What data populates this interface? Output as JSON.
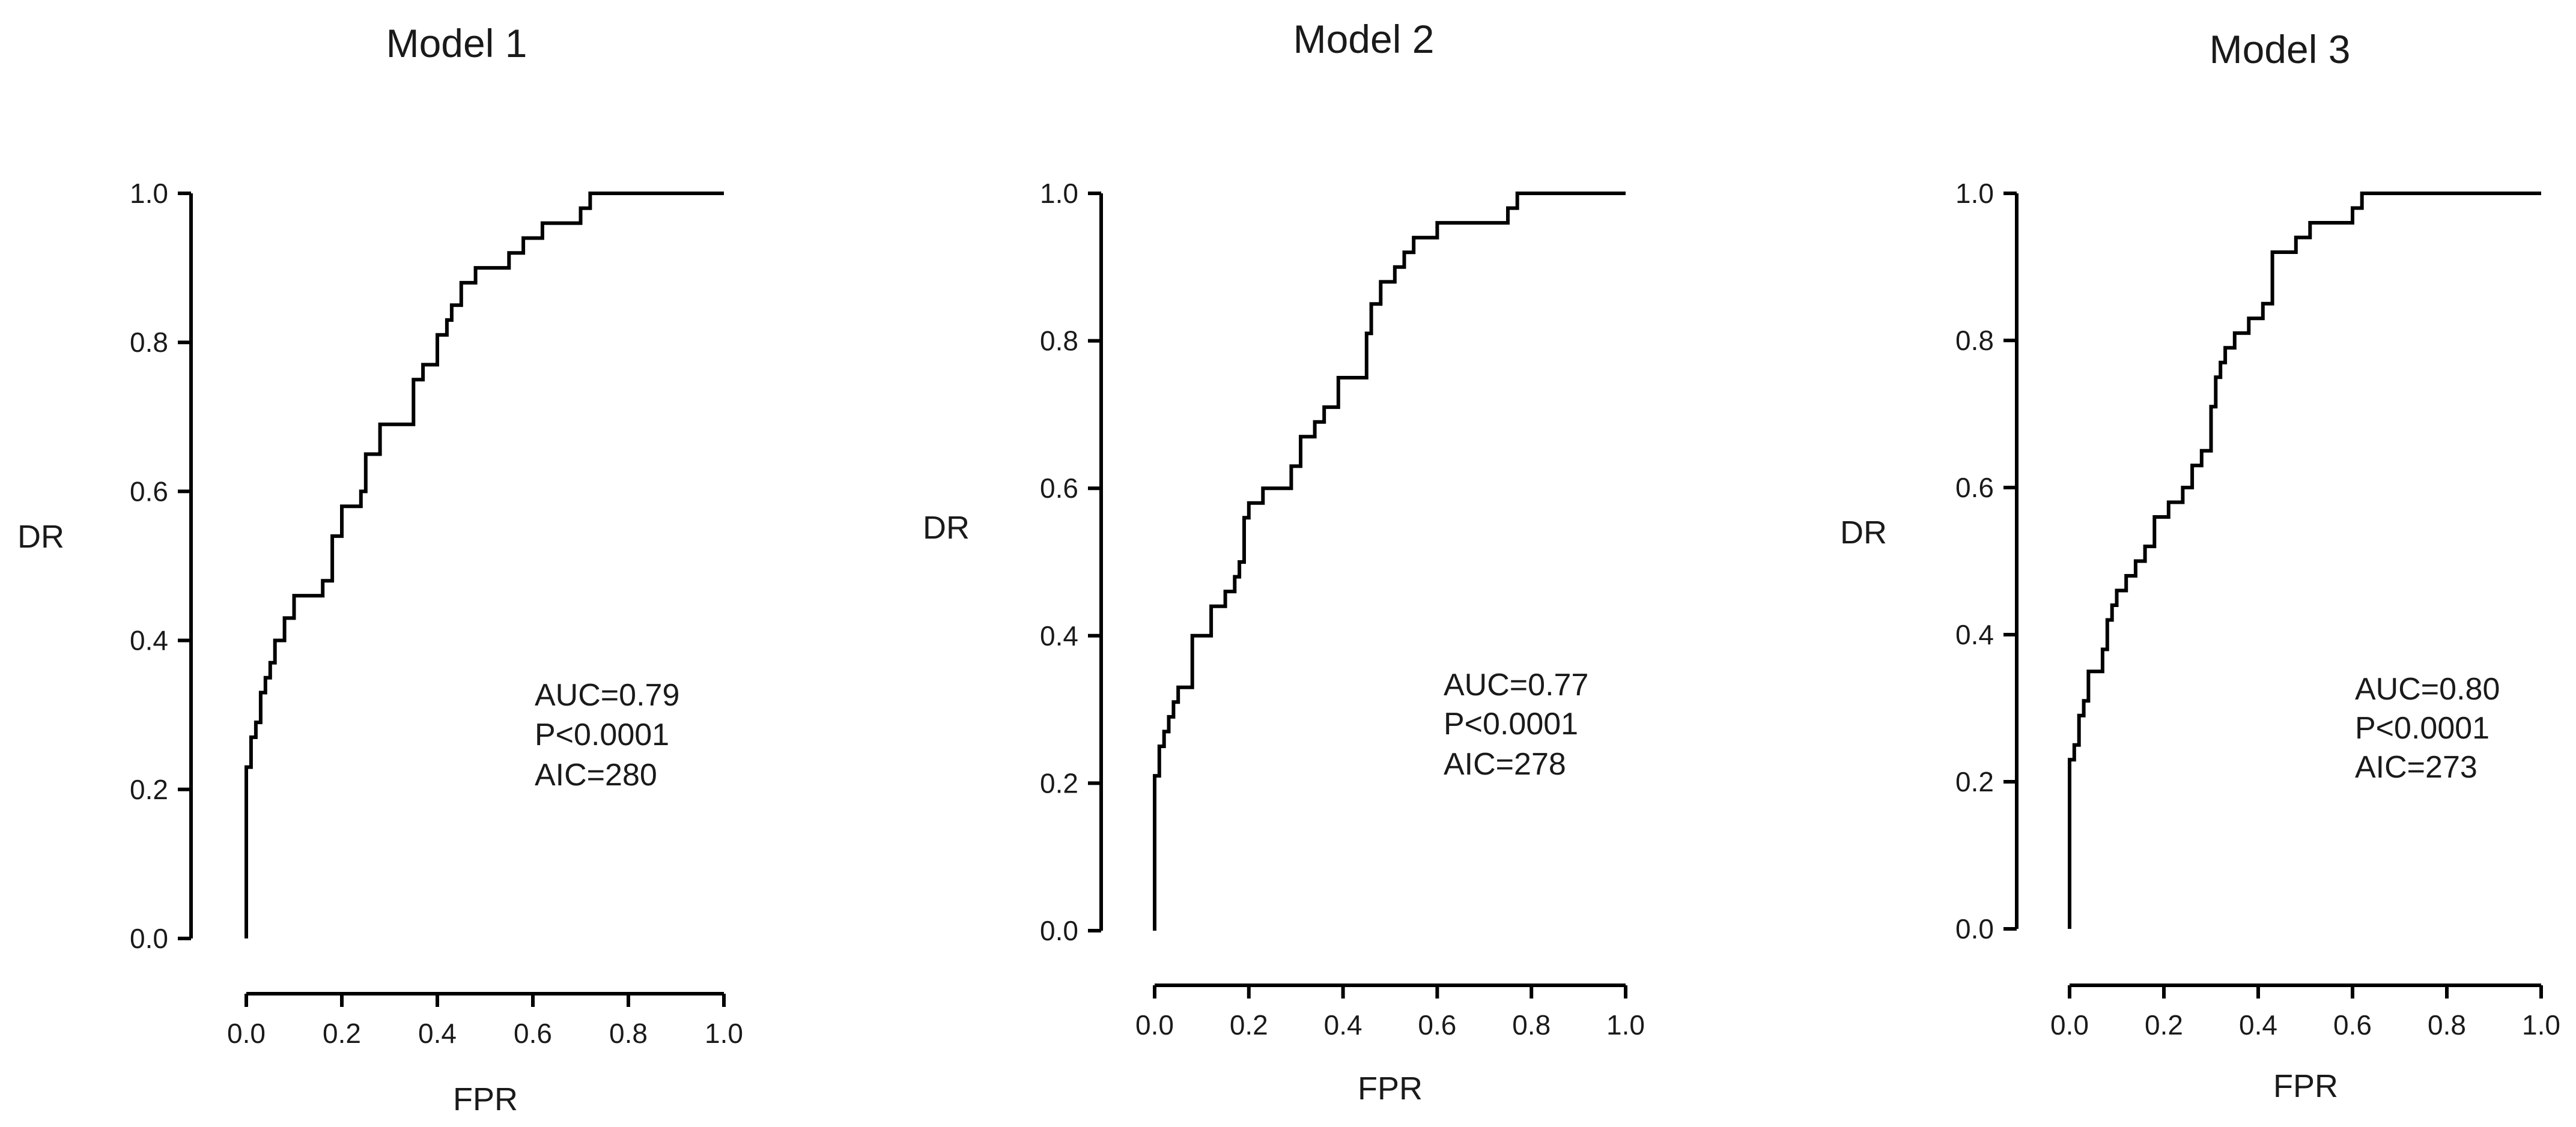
{
  "chart_data": [
    {
      "type": "line",
      "title": "Model 1",
      "xlabel": "FPR",
      "ylabel": "DR",
      "xlim": [
        0,
        1
      ],
      "ylim": [
        0,
        1
      ],
      "x_ticks": [
        "0.0",
        "0.2",
        "0.4",
        "0.6",
        "0.8",
        "1.0"
      ],
      "y_ticks": [
        "0.0",
        "0.2",
        "0.4",
        "0.6",
        "0.8",
        "1.0"
      ],
      "grid": false,
      "annotations": [
        "AUC=0.79",
        "P<0.0001",
        "AIC=280"
      ],
      "series": [
        {
          "x": [
            0,
            0,
            0,
            0.01,
            0.01,
            0.02,
            0.02,
            0.03,
            0.03,
            0.04,
            0.04,
            0.05,
            0.05,
            0.06,
            0.06,
            0.07,
            0.07,
            0.08,
            0.08,
            0.1,
            0.1,
            0.11,
            0.11,
            0.16,
            0.16,
            0.18,
            0.18,
            0.2,
            0.2,
            0.24,
            0.24,
            0.25,
            0.25,
            0.28,
            0.28,
            0.35,
            0.35,
            0.37,
            0.37,
            0.4,
            0.4,
            0.42,
            0.42,
            0.43,
            0.43,
            0.45,
            0.45,
            0.48,
            0.48,
            0.55,
            0.55,
            0.58,
            0.58,
            0.62,
            0.62,
            0.7,
            0.7,
            0.72,
            0.72,
            1.0
          ],
          "y": [
            0,
            0.14,
            0.23,
            0.23,
            0.27,
            0.27,
            0.29,
            0.29,
            0.33,
            0.33,
            0.35,
            0.35,
            0.37,
            0.37,
            0.4,
            0.4,
            0.4,
            0.4,
            0.43,
            0.43,
            0.46,
            0.46,
            0.46,
            0.46,
            0.48,
            0.48,
            0.54,
            0.54,
            0.58,
            0.58,
            0.6,
            0.6,
            0.65,
            0.65,
            0.69,
            0.69,
            0.75,
            0.75,
            0.77,
            0.77,
            0.81,
            0.81,
            0.83,
            0.83,
            0.85,
            0.85,
            0.88,
            0.88,
            0.9,
            0.9,
            0.92,
            0.92,
            0.94,
            0.94,
            0.96,
            0.96,
            0.98,
            0.98,
            1.0,
            1.0
          ]
        }
      ]
    },
    {
      "type": "line",
      "title": "Model 2",
      "xlabel": "FPR",
      "ylabel": "DR",
      "xlim": [
        0,
        1
      ],
      "ylim": [
        0,
        1
      ],
      "x_ticks": [
        "0.0",
        "0.2",
        "0.4",
        "0.6",
        "0.8",
        "1.0"
      ],
      "y_ticks": [
        "0.0",
        "0.2",
        "0.4",
        "0.6",
        "0.8",
        "1.0"
      ],
      "grid": false,
      "annotations": [
        "AUC=0.77",
        "P<0.0001",
        "AIC=278"
      ],
      "series": [
        {
          "x": [
            0,
            0,
            0,
            0.01,
            0.01,
            0.02,
            0.02,
            0.03,
            0.03,
            0.04,
            0.04,
            0.05,
            0.05,
            0.08,
            0.08,
            0.12,
            0.12,
            0.15,
            0.15,
            0.17,
            0.17,
            0.18,
            0.18,
            0.19,
            0.19,
            0.2,
            0.2,
            0.23,
            0.23,
            0.29,
            0.29,
            0.31,
            0.31,
            0.34,
            0.34,
            0.36,
            0.36,
            0.39,
            0.39,
            0.45,
            0.45,
            0.46,
            0.46,
            0.48,
            0.48,
            0.51,
            0.51,
            0.53,
            0.53,
            0.55,
            0.55,
            0.6,
            0.6,
            0.75,
            0.75,
            0.77,
            0.77,
            1.0
          ],
          "y": [
            0,
            0.14,
            0.21,
            0.21,
            0.25,
            0.25,
            0.27,
            0.27,
            0.29,
            0.29,
            0.31,
            0.31,
            0.33,
            0.33,
            0.4,
            0.4,
            0.44,
            0.44,
            0.46,
            0.46,
            0.48,
            0.48,
            0.5,
            0.5,
            0.56,
            0.56,
            0.58,
            0.58,
            0.6,
            0.6,
            0.63,
            0.63,
            0.67,
            0.67,
            0.69,
            0.69,
            0.71,
            0.71,
            0.75,
            0.75,
            0.81,
            0.81,
            0.85,
            0.85,
            0.88,
            0.88,
            0.9,
            0.9,
            0.92,
            0.92,
            0.94,
            0.94,
            0.96,
            0.96,
            0.98,
            0.98,
            1.0,
            1.0
          ]
        }
      ]
    },
    {
      "type": "line",
      "title": "Model 3",
      "xlabel": "FPR",
      "ylabel": "DR",
      "xlim": [
        0,
        1
      ],
      "ylim": [
        0,
        1
      ],
      "x_ticks": [
        "0.0",
        "0.2",
        "0.4",
        "0.6",
        "0.8",
        "1.0"
      ],
      "y_ticks": [
        "0.0",
        "0.2",
        "0.4",
        "0.6",
        "0.8",
        "1.0"
      ],
      "grid": false,
      "annotations": [
        "AUC=0.80",
        "P<0.0001",
        "AIC=273"
      ],
      "series": [
        {
          "x": [
            0,
            0,
            0,
            0.01,
            0.01,
            0.02,
            0.02,
            0.03,
            0.03,
            0.04,
            0.04,
            0.07,
            0.07,
            0.08,
            0.08,
            0.09,
            0.09,
            0.1,
            0.1,
            0.12,
            0.12,
            0.14,
            0.14,
            0.16,
            0.16,
            0.18,
            0.18,
            0.21,
            0.21,
            0.24,
            0.24,
            0.26,
            0.26,
            0.28,
            0.28,
            0.3,
            0.3,
            0.31,
            0.31,
            0.32,
            0.32,
            0.33,
            0.33,
            0.35,
            0.35,
            0.38,
            0.38,
            0.41,
            0.41,
            0.43,
            0.43,
            0.47,
            0.47,
            0.48,
            0.48,
            0.51,
            0.51,
            0.6,
            0.6,
            0.62,
            0.62,
            1.0
          ],
          "y": [
            0,
            0.2,
            0.23,
            0.23,
            0.25,
            0.25,
            0.29,
            0.29,
            0.31,
            0.31,
            0.35,
            0.35,
            0.38,
            0.38,
            0.42,
            0.42,
            0.44,
            0.44,
            0.46,
            0.46,
            0.48,
            0.48,
            0.5,
            0.5,
            0.52,
            0.52,
            0.56,
            0.56,
            0.58,
            0.58,
            0.6,
            0.6,
            0.63,
            0.63,
            0.65,
            0.65,
            0.71,
            0.71,
            0.75,
            0.75,
            0.77,
            0.77,
            0.79,
            0.79,
            0.81,
            0.81,
            0.83,
            0.83,
            0.85,
            0.85,
            0.92,
            0.92,
            0.92,
            0.92,
            0.94,
            0.94,
            0.96,
            0.96,
            0.98,
            0.98,
            1.0,
            1.0
          ]
        }
      ]
    }
  ]
}
